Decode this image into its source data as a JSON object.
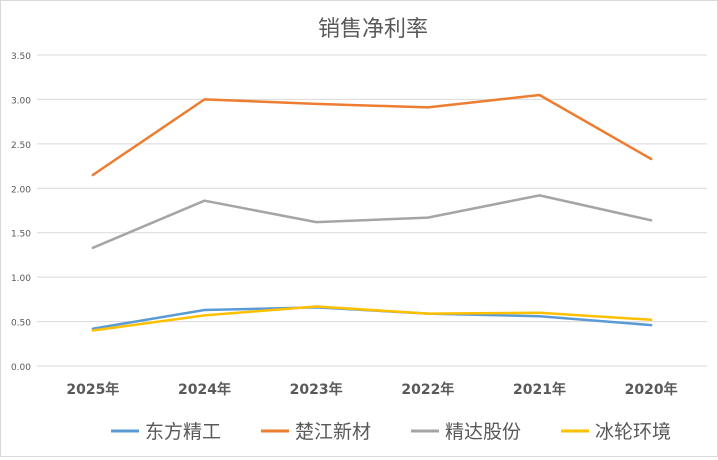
{
  "chart_data": {
    "type": "line",
    "title": "销售净利率",
    "categories": [
      "2025年",
      "2024年",
      "2023年",
      "2022年",
      "2021年",
      "2020年"
    ],
    "ylim": [
      0,
      3.5
    ],
    "yticks": [
      "0.00",
      "0.50",
      "1.00",
      "1.50",
      "2.00",
      "2.50",
      "3.00",
      "3.50"
    ],
    "grid": true,
    "legend_position": "bottom",
    "series": [
      {
        "name": "东方精工",
        "color": "#5b9bd5",
        "values": [
          0.42,
          0.63,
          0.66,
          0.59,
          0.56,
          0.46
        ]
      },
      {
        "name": "楚江新材",
        "color": "#ed7d31",
        "values": [
          2.15,
          3.0,
          2.95,
          2.91,
          3.05,
          2.33
        ]
      },
      {
        "name": "精达股份",
        "color": "#a5a5a5",
        "values": [
          1.33,
          1.86,
          1.62,
          1.67,
          1.92,
          1.64
        ]
      },
      {
        "name": "冰轮环境",
        "color": "#ffc000",
        "values": [
          0.4,
          0.57,
          0.67,
          0.59,
          0.6,
          0.52
        ]
      }
    ]
  }
}
